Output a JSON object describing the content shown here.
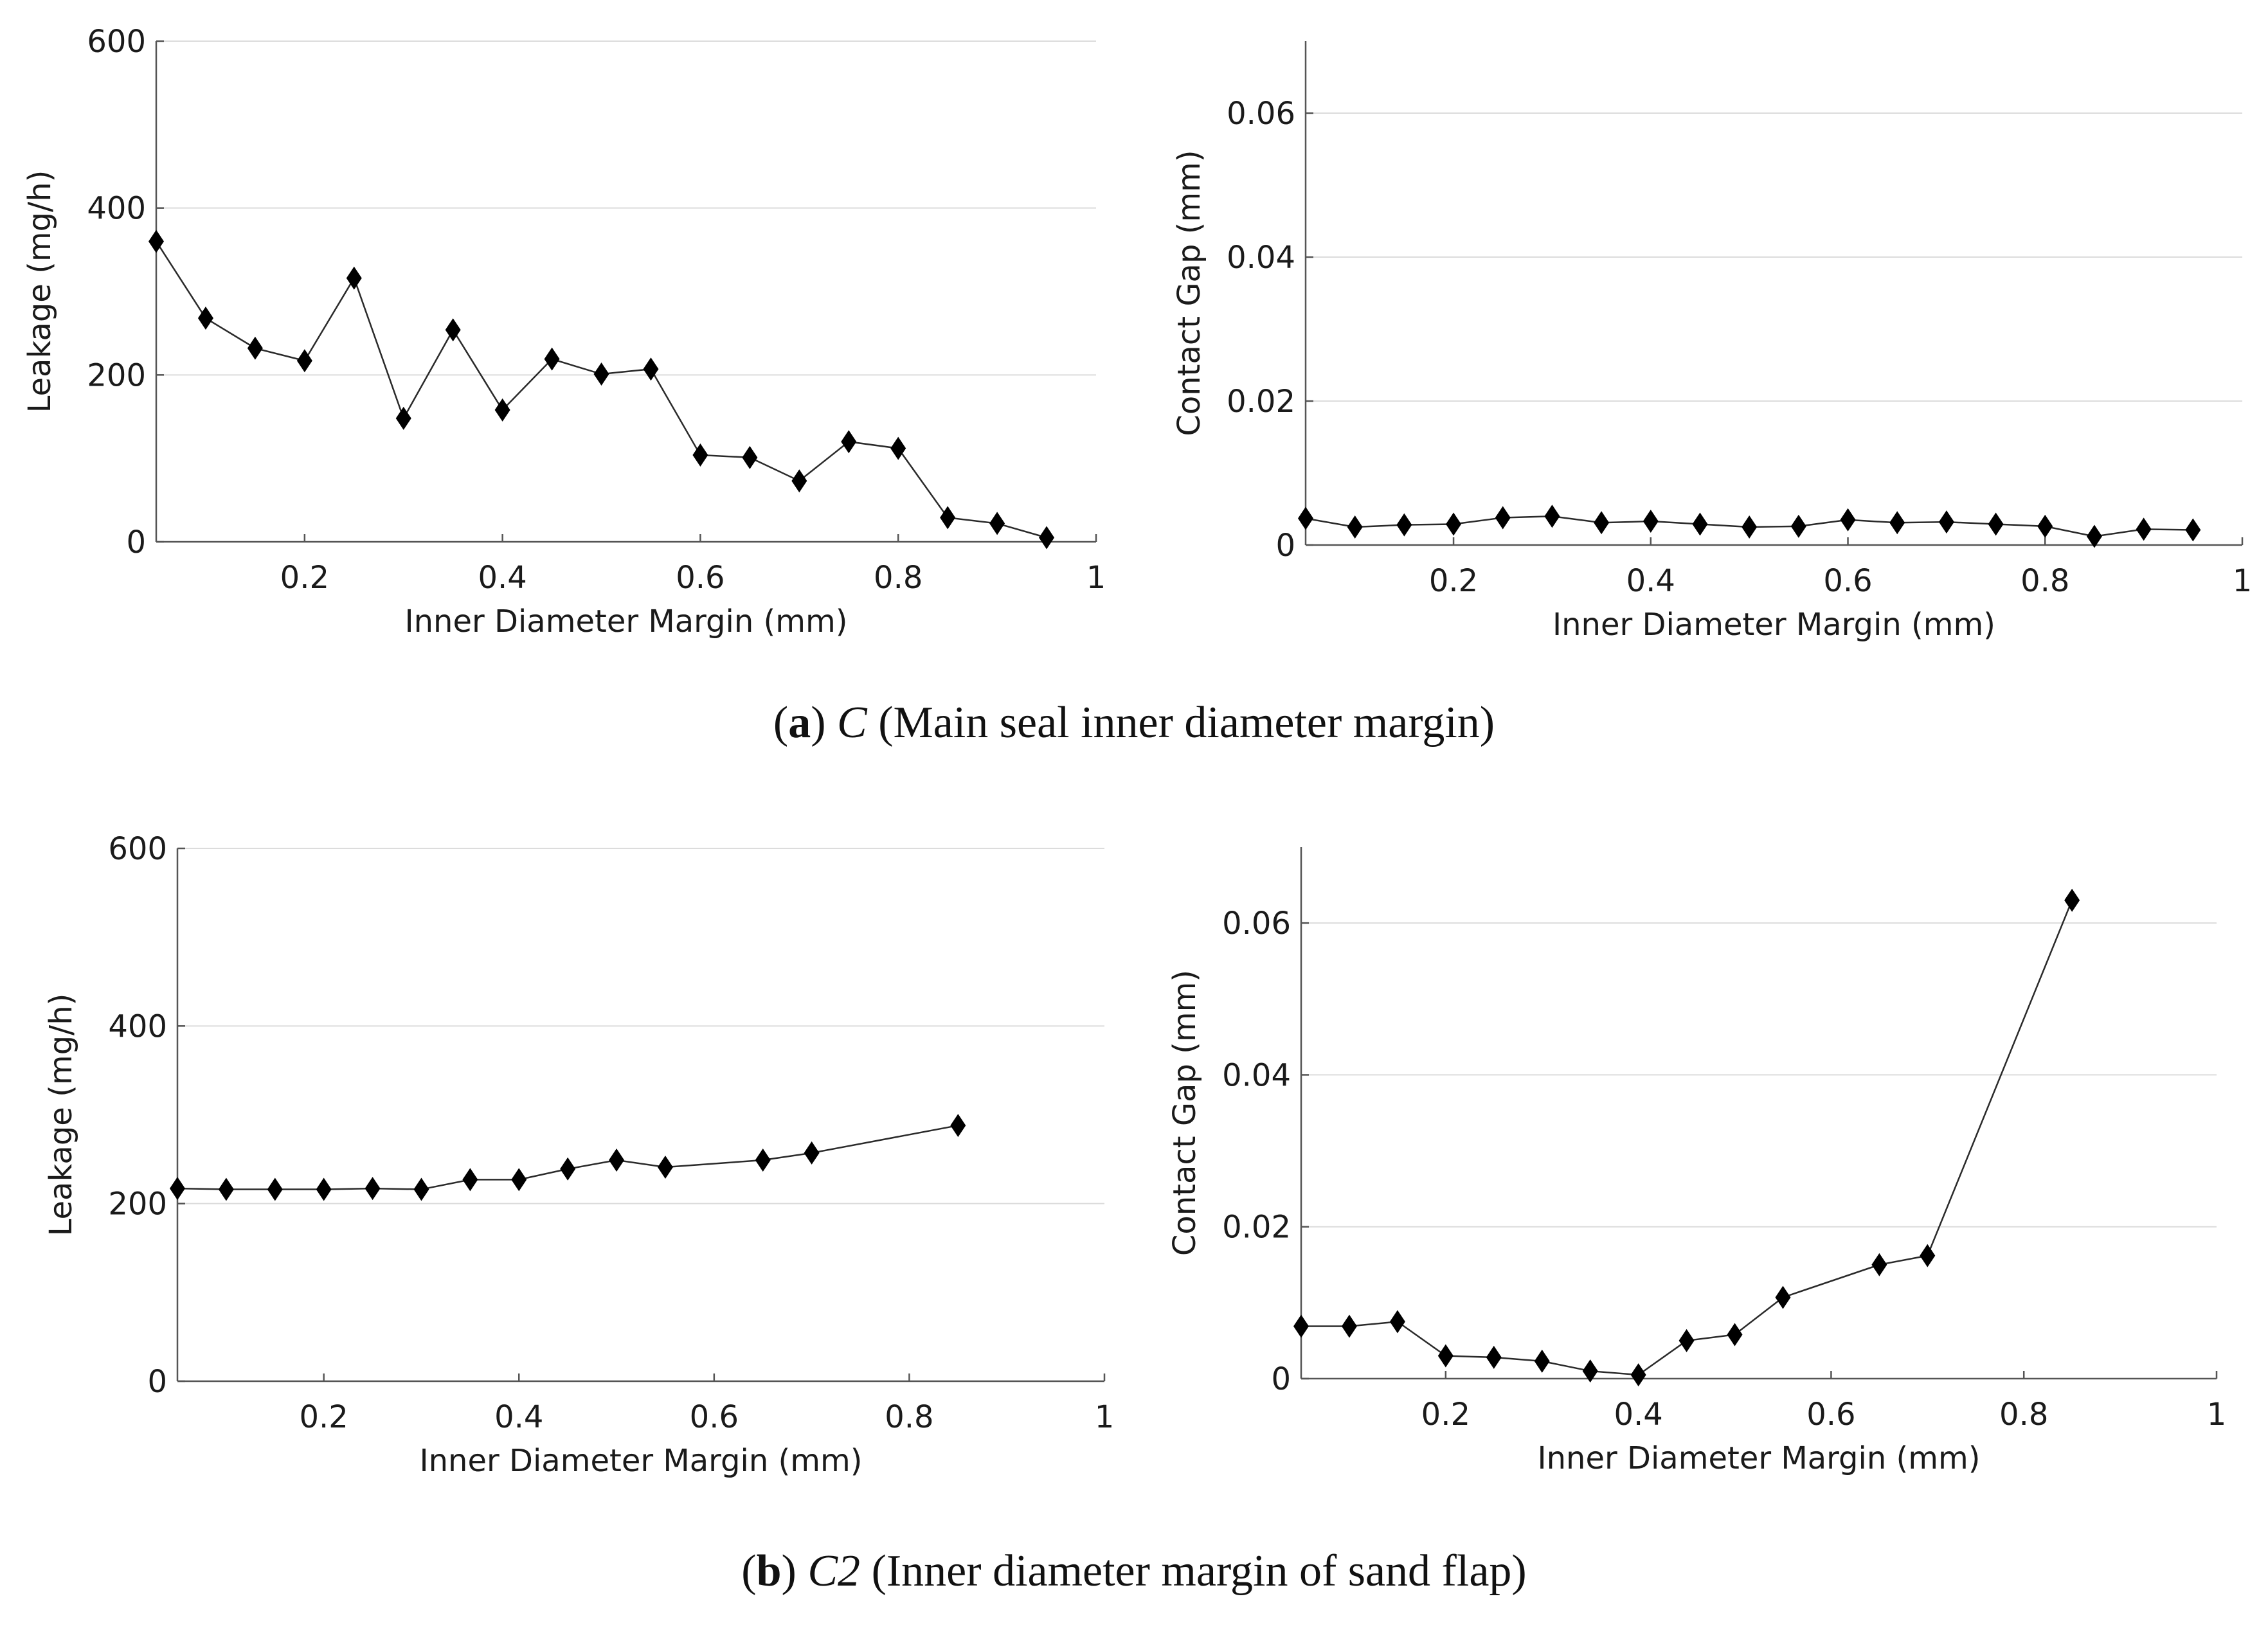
{
  "captions": {
    "a": {
      "open": "(",
      "label": "a",
      "close": ")",
      "symbol": "C",
      "text": "(Main seal inner diameter margin)"
    },
    "b": {
      "open": "(",
      "label": "b",
      "close": ")",
      "symbol": "C2",
      "text": "(Inner diameter margin of sand flap)"
    }
  },
  "colors": {
    "line": "#2a2a2a",
    "marker": "#000000",
    "grid": "#dcdcdc",
    "axis": "#555555"
  },
  "chart_data": [
    {
      "id": "a-leakage",
      "type": "line",
      "xlabel": "Inner Diameter Margin (mm)",
      "ylabel": "Leakage (mg/h)",
      "xlim": [
        0.05,
        1
      ],
      "ylim": [
        0,
        600
      ],
      "xticks": [
        0.2,
        0.4,
        0.6,
        0.8,
        1
      ],
      "xtick_labels": [
        "0.2",
        "0.4",
        "0.6",
        "0.8",
        "1"
      ],
      "yticks": [
        0,
        200,
        400,
        600
      ],
      "ytick_labels": [
        "0",
        "200",
        "400",
        "600"
      ],
      "grid": true,
      "x": [
        0.05,
        0.1,
        0.15,
        0.2,
        0.25,
        0.3,
        0.35,
        0.4,
        0.45,
        0.5,
        0.55,
        0.6,
        0.65,
        0.7,
        0.75,
        0.8,
        0.85,
        0.9,
        0.95
      ],
      "y": [
        360,
        268,
        232,
        217,
        316,
        148,
        254,
        158,
        219,
        201,
        207,
        104,
        101,
        73,
        120,
        112,
        29,
        22,
        5
      ]
    },
    {
      "id": "a-gap",
      "type": "line",
      "xlabel": "Inner Diameter Margin (mm)",
      "ylabel": "Contact Gap (mm)",
      "xlim": [
        0.05,
        1
      ],
      "ylim": [
        0,
        0.07
      ],
      "xticks": [
        0.2,
        0.4,
        0.6,
        0.8,
        1
      ],
      "xtick_labels": [
        "0.2",
        "0.4",
        "0.6",
        "0.8",
        "1"
      ],
      "yticks": [
        0,
        0.02,
        0.04,
        0.06
      ],
      "ytick_labels": [
        "0",
        "0.02",
        "0.04",
        "0.06"
      ],
      "grid": true,
      "x": [
        0.05,
        0.1,
        0.15,
        0.2,
        0.25,
        0.3,
        0.35,
        0.4,
        0.45,
        0.5,
        0.55,
        0.6,
        0.65,
        0.7,
        0.75,
        0.8,
        0.85,
        0.9,
        0.95
      ],
      "y": [
        0.0037,
        0.0025,
        0.0028,
        0.0029,
        0.0038,
        0.004,
        0.0031,
        0.0033,
        0.0029,
        0.0025,
        0.0026,
        0.0035,
        0.0031,
        0.0032,
        0.0029,
        0.0026,
        0.0012,
        0.0022,
        0.0021
      ]
    },
    {
      "id": "b-leakage",
      "type": "line",
      "xlabel": "Inner Diameter Margin (mm)",
      "ylabel": "Leakage (mg/h)",
      "xlim": [
        0.05,
        1
      ],
      "ylim": [
        0,
        600
      ],
      "xticks": [
        0.2,
        0.4,
        0.6,
        0.8,
        1
      ],
      "xtick_labels": [
        "0.2",
        "0.4",
        "0.6",
        "0.8",
        "1"
      ],
      "yticks": [
        0,
        200,
        400,
        600
      ],
      "ytick_labels": [
        "0",
        "200",
        "400",
        "600"
      ],
      "grid": true,
      "x": [
        0.05,
        0.1,
        0.15,
        0.2,
        0.25,
        0.3,
        0.35,
        0.4,
        0.45,
        0.5,
        0.55,
        0.65,
        0.7,
        0.85
      ],
      "y": [
        217,
        216,
        216,
        216,
        217,
        216,
        227,
        227,
        239,
        249,
        241,
        249,
        257,
        288
      ]
    },
    {
      "id": "b-gap",
      "type": "line",
      "xlabel": "Inner Diameter Margin (mm)",
      "ylabel": "Contact Gap (mm)",
      "xlim": [
        0.05,
        1
      ],
      "ylim": [
        0,
        0.07
      ],
      "xticks": [
        0.2,
        0.4,
        0.6,
        0.8,
        1
      ],
      "xtick_labels": [
        "0.2",
        "0.4",
        "0.6",
        "0.8",
        "1"
      ],
      "yticks": [
        0,
        0.02,
        0.04,
        0.06
      ],
      "ytick_labels": [
        "0",
        "0.02",
        "0.04",
        "0.06"
      ],
      "grid": true,
      "x": [
        0.05,
        0.1,
        0.15,
        0.2,
        0.25,
        0.3,
        0.35,
        0.4,
        0.45,
        0.5,
        0.55,
        0.65,
        0.7,
        0.85
      ],
      "y": [
        0.0069,
        0.0069,
        0.0075,
        0.003,
        0.0028,
        0.0023,
        0.001,
        0.0005,
        0.005,
        0.0058,
        0.0107,
        0.015,
        0.0162,
        0.063
      ]
    }
  ]
}
